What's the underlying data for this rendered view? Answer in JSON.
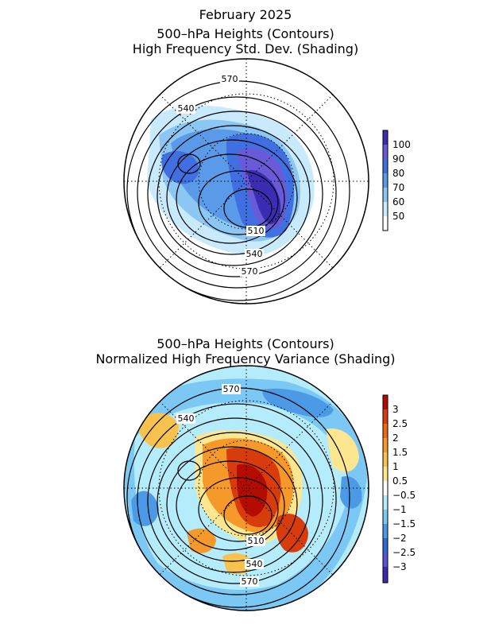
{
  "top": {
    "title_lines": [
      "February 2025",
      "500–hPa Heights (Contours)",
      "High Frequency Std. Dev. (Shading)"
    ],
    "contour_labels": [
      "570",
      "540",
      "510",
      "540",
      "570"
    ],
    "colorbar": {
      "labels": [
        "100",
        "90",
        "80",
        "70",
        "60",
        "50"
      ],
      "colors": [
        "#3b2cb4",
        "#6a5ad8",
        "#3f6fe0",
        "#5a9ae8",
        "#8cc6f2",
        "#c8eafc",
        "#ffffff"
      ]
    }
  },
  "bottom": {
    "title_lines": [
      "500–hPa Heights (Contours)",
      "Normalized High Frequency Variance (Shading)"
    ],
    "contour_labels": [
      "570",
      "540",
      "510",
      "540",
      "570"
    ],
    "colorbar": {
      "labels": [
        "3",
        "2.5",
        "2",
        "1.5",
        "1",
        "0.5",
        "−0.5",
        "−1",
        "−1.5",
        "−2",
        "−2.5",
        "−3"
      ],
      "colors": [
        "#b40c00",
        "#d83c0c",
        "#ec6a10",
        "#f59a2a",
        "#f8c24e",
        "#fce690",
        "#ffffff",
        "#b4ecfc",
        "#7cc8f4",
        "#4c9ae6",
        "#2e6ad8",
        "#5a54d6",
        "#3e2ab0"
      ]
    }
  }
}
